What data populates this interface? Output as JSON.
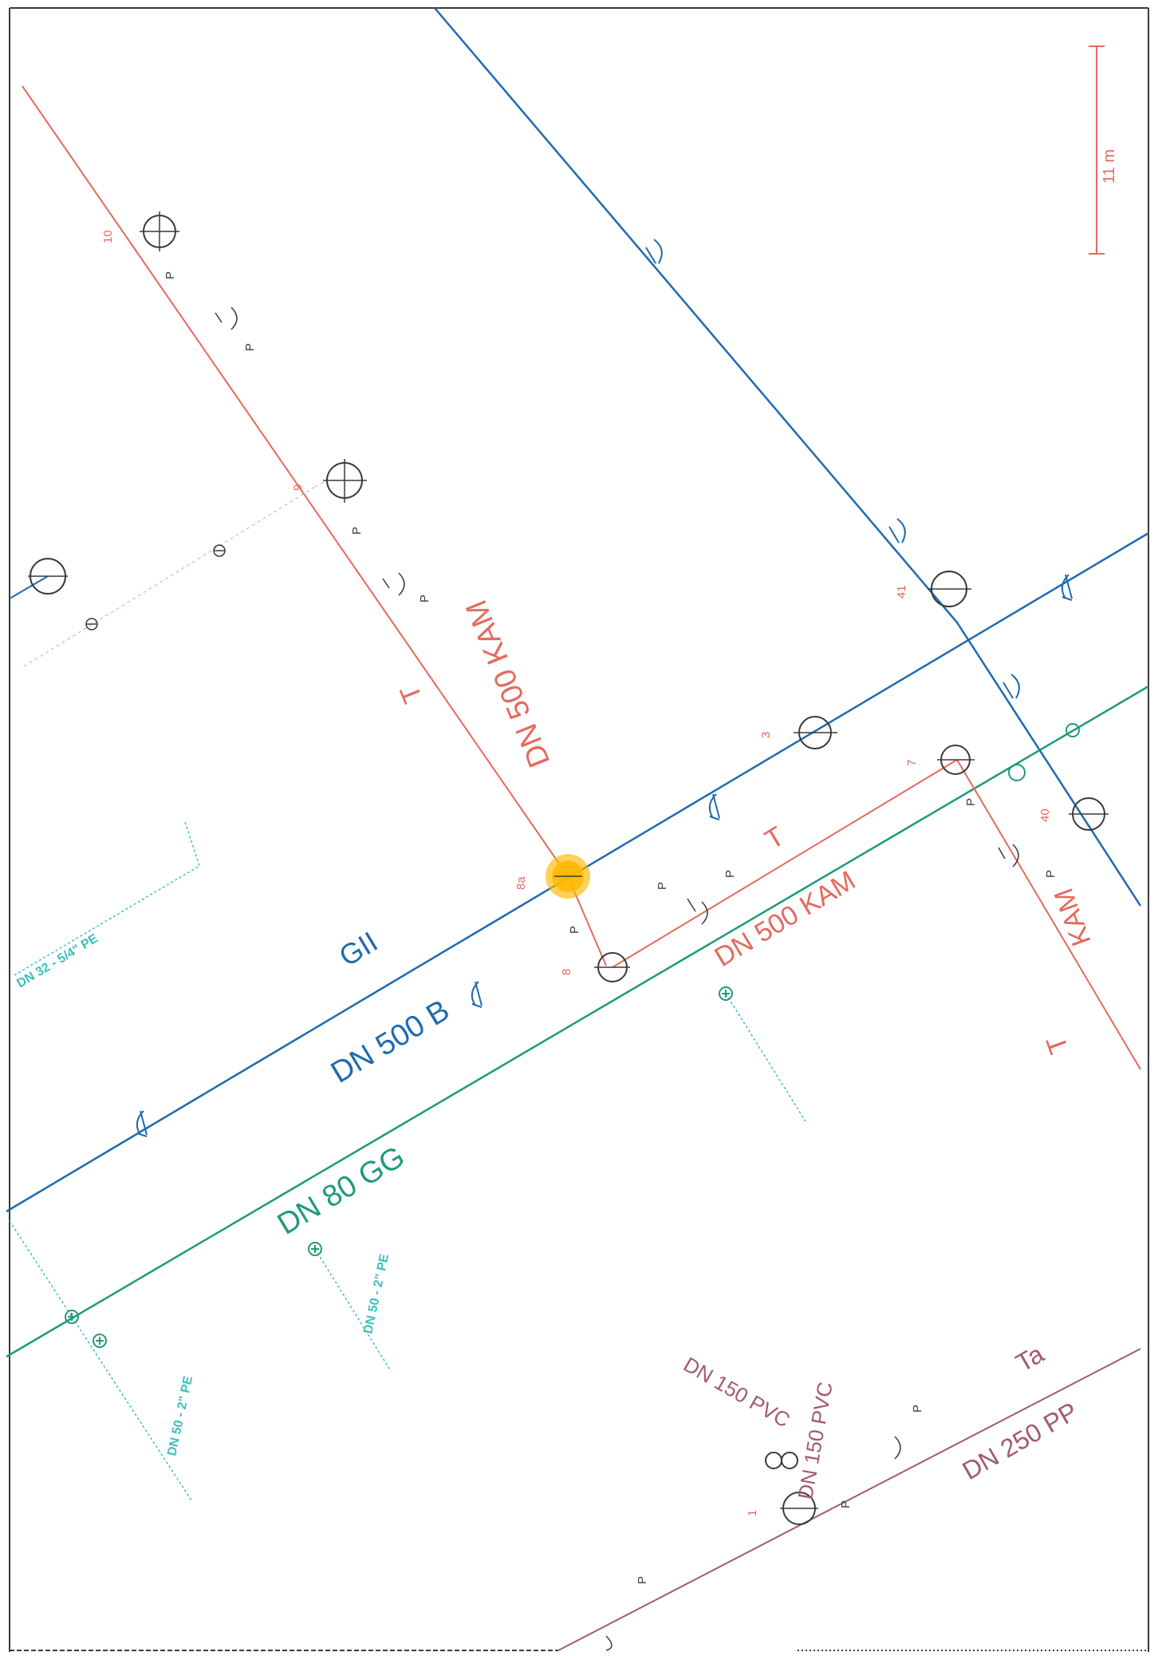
{
  "colors": {
    "sewer": "#e46a5e",
    "water": "#1f6ab0",
    "gas": "#1f9a7a",
    "gas_light": "#3dbfbf",
    "sewer_pp": "#a25a6e",
    "frame": "#3a3a3a",
    "highlight": "#ffb800"
  },
  "scale_bar": {
    "label": "11 m"
  },
  "pipes": {
    "sewer_main": {
      "type_label": "T",
      "spec_label": "DN 500 KAM"
    },
    "sewer_branch": {
      "type_label": "T",
      "spec_label": "DN 500 KAM"
    },
    "sewer_right": {
      "type_label": "T",
      "spec_label": "KAM"
    },
    "water_main": {
      "type_label": "GII",
      "spec_label": "DN 500 B"
    },
    "gas_main": {
      "spec_label": "DN 80 GG"
    },
    "sewer_pp": {
      "type_label": "Ta",
      "spec_label": "DN 250 PP"
    },
    "pvc_a": {
      "spec_label": "DN 150 PVC"
    },
    "pvc_b": {
      "spec_label": "DN 150 PVC"
    },
    "gas_service_1": {
      "spec_label": "DN 32 - 5/4\" PE"
    },
    "gas_service_2": {
      "spec_label": "DN 50 - 2\" PE"
    },
    "gas_service_3": {
      "spec_label": "DN 50 - 2\" PE"
    }
  },
  "manhole_numbers": {
    "m10": "10",
    "m9": "9",
    "m8a": "8a",
    "m8": "8",
    "m7": "7",
    "m3": "3",
    "m41": "41",
    "m40": "40",
    "m1": "1"
  },
  "p_marker": "P"
}
